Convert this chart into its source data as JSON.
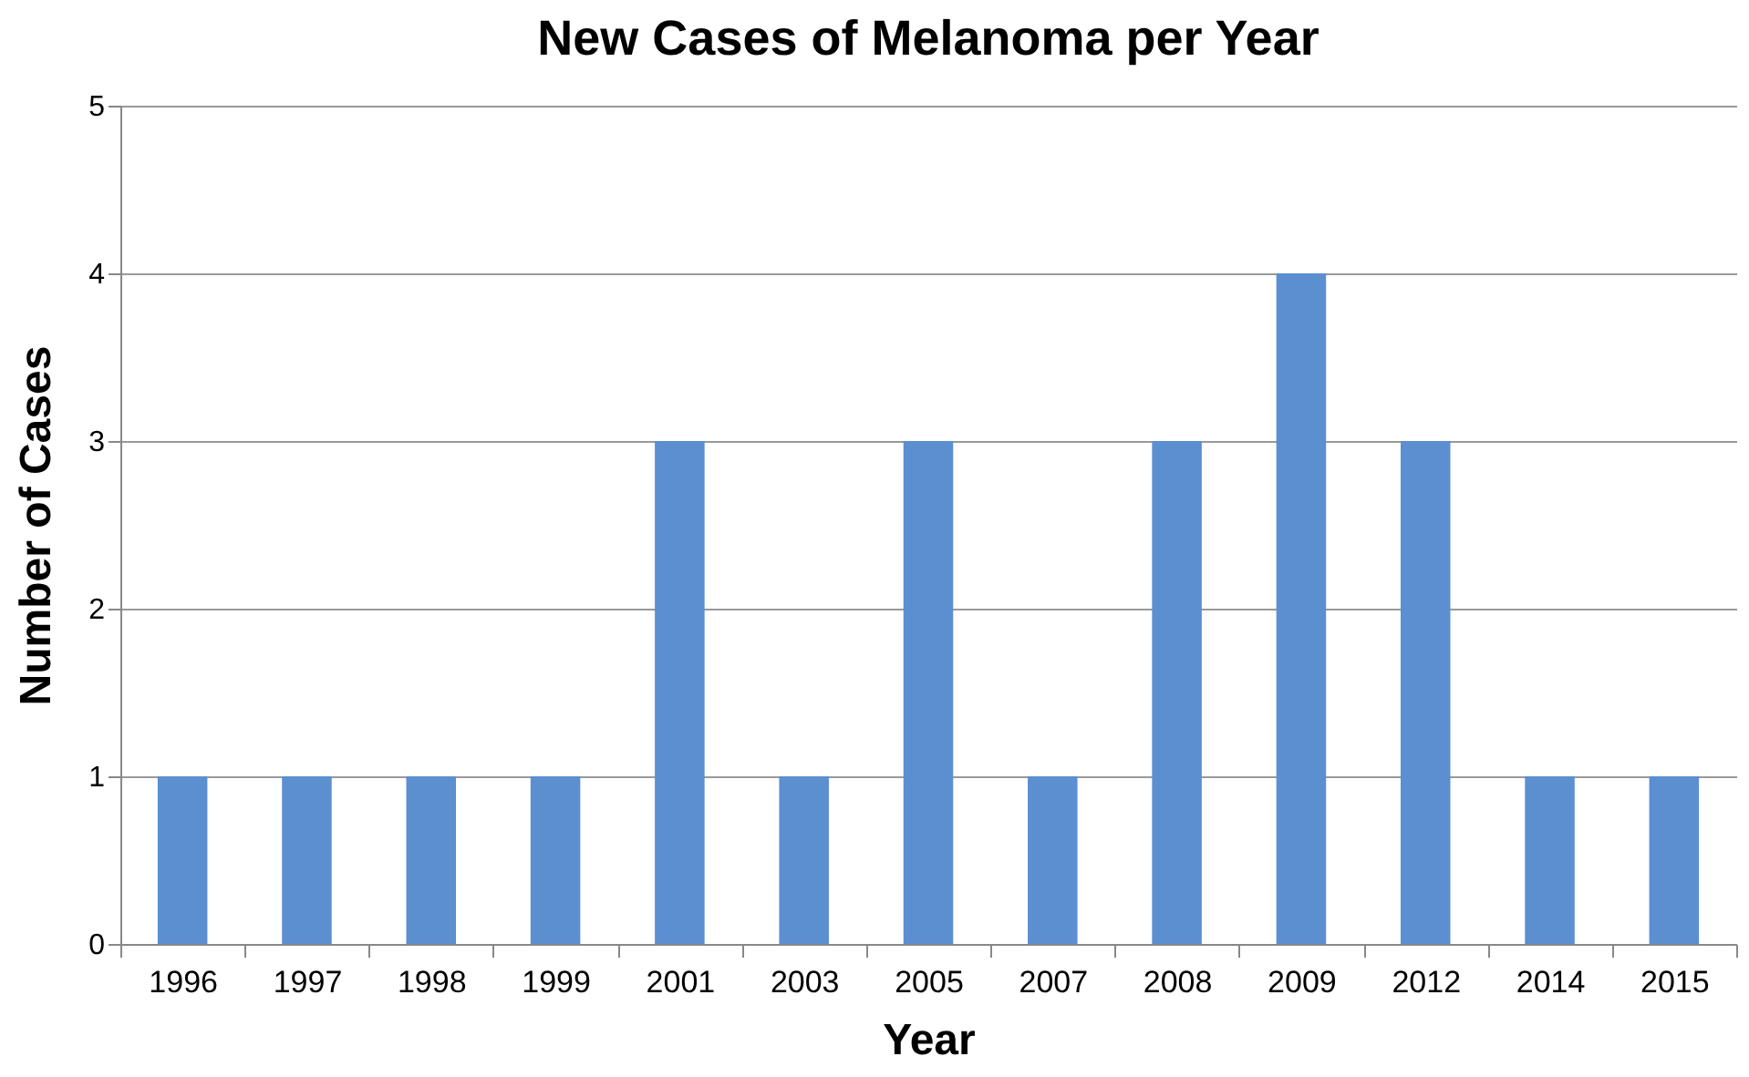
{
  "chart_data": {
    "type": "bar",
    "title": "New Cases of Melanoma per Year",
    "xlabel": "Year",
    "ylabel": "Number of Cases",
    "categories": [
      "1996",
      "1997",
      "1998",
      "1999",
      "2001",
      "2003",
      "2005",
      "2007",
      "2008",
      "2009",
      "2012",
      "2014",
      "2015"
    ],
    "values": [
      1,
      1,
      1,
      1,
      3,
      1,
      3,
      1,
      3,
      4,
      3,
      1,
      1
    ],
    "color": "#5b8fd0",
    "ylim": [
      0,
      5
    ],
    "yticks": [
      0,
      1,
      2,
      3,
      4,
      5
    ],
    "grid": "y"
  }
}
